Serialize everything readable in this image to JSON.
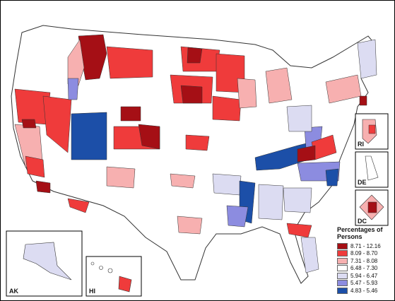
{
  "legend": {
    "title": "Percentages of Persons",
    "classes": [
      {
        "label": "8.71 - 12.16",
        "color": "#a50f15"
      },
      {
        "label": "8.09 - 8.70",
        "color": "#ef3b3b"
      },
      {
        "label": "7.31 - 8.08",
        "color": "#f7b0b0"
      },
      {
        "label": "6.48 - 7.30",
        "color": "#ffffff"
      },
      {
        "label": "5.94 - 6.47",
        "color": "#dcdcf2"
      },
      {
        "label": "5.47 - 5.93",
        "color": "#8c8ce0"
      },
      {
        "label": "4.83 - 5.46",
        "color": "#1c4fa8"
      }
    ]
  },
  "insets": {
    "alaska": "AK",
    "hawaii": "HI",
    "rhode_island": "RI",
    "delaware": "DE",
    "dc": "DC"
  },
  "colors": {
    "border": "#333333",
    "inset_frame": "#000000"
  }
}
